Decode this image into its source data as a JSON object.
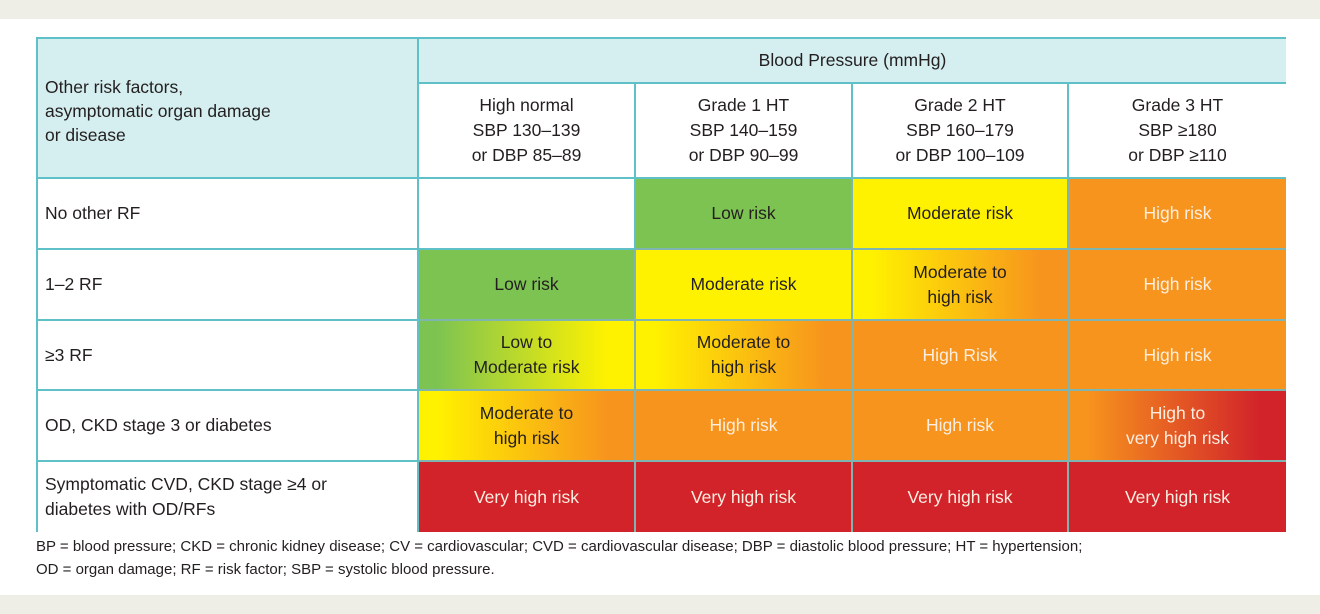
{
  "table": {
    "corner_header": [
      "Other risk factors,",
      "asymptomatic organ damage",
      "or disease"
    ],
    "group_header": "Blood Pressure (mmHg)",
    "columns": [
      {
        "lines": [
          "High normal",
          "SBP 130–139",
          "or DBP 85–89"
        ]
      },
      {
        "lines": [
          "Grade 1 HT",
          "SBP 140–159",
          "or DBP 90–99"
        ]
      },
      {
        "lines": [
          "Grade 2 HT",
          "SBP 160–179",
          "or DBP 100–109"
        ]
      },
      {
        "lines": [
          "Grade 3 HT",
          "SBP ≥180",
          "or DBP ≥110"
        ]
      }
    ],
    "rows": [
      {
        "label": [
          "No other RF"
        ],
        "cells": [
          {
            "lines": [
              ""
            ],
            "colors": [
              "#ffffff"
            ],
            "text": "dark"
          },
          {
            "lines": [
              "Low risk"
            ],
            "colors": [
              "#7dc352"
            ],
            "text": "dark"
          },
          {
            "lines": [
              "Moderate risk"
            ],
            "colors": [
              "#fff200"
            ],
            "text": "dark"
          },
          {
            "lines": [
              "High risk"
            ],
            "colors": [
              "#f7941d"
            ],
            "text": "light"
          }
        ]
      },
      {
        "label": [
          "1–2 RF"
        ],
        "cells": [
          {
            "lines": [
              "Low risk"
            ],
            "colors": [
              "#7dc352"
            ],
            "text": "dark"
          },
          {
            "lines": [
              "Moderate risk"
            ],
            "colors": [
              "#fff200"
            ],
            "text": "dark"
          },
          {
            "lines": [
              "Moderate to",
              "high risk"
            ],
            "colors": [
              "#fff200",
              "#f7941d"
            ],
            "text": "dark"
          },
          {
            "lines": [
              "High risk"
            ],
            "colors": [
              "#f7941d"
            ],
            "text": "light"
          }
        ]
      },
      {
        "label": [
          "≥3 RF"
        ],
        "cells": [
          {
            "lines": [
              "Low to",
              "Moderate risk"
            ],
            "colors": [
              "#7dc352",
              "#fff200"
            ],
            "text": "dark"
          },
          {
            "lines": [
              "Moderate to",
              "high risk"
            ],
            "colors": [
              "#fff200",
              "#f7941d"
            ],
            "text": "dark"
          },
          {
            "lines": [
              "High Risk"
            ],
            "colors": [
              "#f7941d"
            ],
            "text": "light"
          },
          {
            "lines": [
              "High risk"
            ],
            "colors": [
              "#f7941d"
            ],
            "text": "light"
          }
        ]
      },
      {
        "label": [
          "OD, CKD stage 3 or diabetes"
        ],
        "cells": [
          {
            "lines": [
              "Moderate to",
              "high risk"
            ],
            "colors": [
              "#fff200",
              "#f7941d"
            ],
            "text": "dark"
          },
          {
            "lines": [
              "High risk"
            ],
            "colors": [
              "#f7941d"
            ],
            "text": "light"
          },
          {
            "lines": [
              "High risk"
            ],
            "colors": [
              "#f7941d"
            ],
            "text": "light"
          },
          {
            "lines": [
              "High to",
              "very high risk"
            ],
            "colors": [
              "#f7941d",
              "#d2232a"
            ],
            "text": "light"
          }
        ]
      },
      {
        "label": [
          "Symptomatic CVD, CKD stage ≥4 or",
          "diabetes with OD/RFs"
        ],
        "cells": [
          {
            "lines": [
              "Very high risk"
            ],
            "colors": [
              "#d2232a"
            ],
            "text": "light"
          },
          {
            "lines": [
              "Very high risk"
            ],
            "colors": [
              "#d2232a"
            ],
            "text": "light"
          },
          {
            "lines": [
              "Very high risk"
            ],
            "colors": [
              "#d2232a"
            ],
            "text": "light"
          },
          {
            "lines": [
              "Very high risk"
            ],
            "colors": [
              "#d2232a"
            ],
            "text": "light"
          }
        ]
      }
    ]
  },
  "footnote": [
    "BP = blood pressure; CKD = chronic kidney disease; CV = cardiovascular; CVD = cardiovascular disease; DBP = diastolic blood pressure; HT = hypertension;",
    "OD = organ damage; RF = risk factor; SBP = systolic blood pressure."
  ],
  "colors": {
    "border": "#5fc0c7",
    "header_bg": "#d5eef0",
    "low": "#7dc352",
    "moderate": "#fff200",
    "high": "#f7941d",
    "very_high": "#d2232a"
  }
}
